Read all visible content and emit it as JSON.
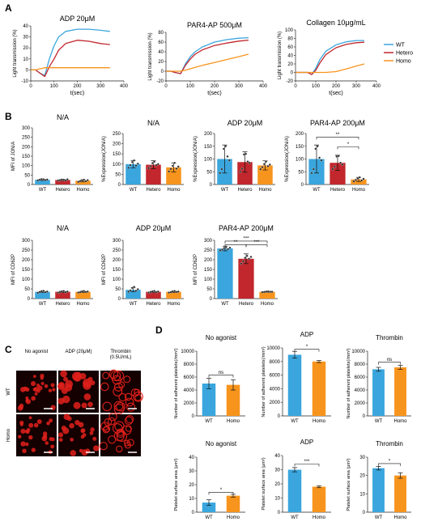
{
  "colors": {
    "wt": "#3aa6dd",
    "hetero": "#c1272d",
    "homo": "#f7941d",
    "axis": "#222222",
    "microscopy_bg": "#140000",
    "cell": "#e0201b",
    "scale_bar": "#ffffff"
  },
  "panels": {
    "A": {
      "label": "A",
      "legend": [
        "WT",
        "Hetero",
        "Homo"
      ],
      "charts": [
        {
          "type": "line",
          "title": "ADP 20μM",
          "xlabel": "t(sec)",
          "ylabel": "Light transmission (%)",
          "xlim": [
            0,
            400
          ],
          "ylim": [
            -10,
            40
          ],
          "xticks": [
            0,
            100,
            200,
            300,
            400
          ],
          "yticks": [
            -10,
            0,
            10,
            20,
            30,
            40
          ],
          "x": [
            0,
            20,
            40,
            60,
            80,
            100,
            120,
            150,
            200,
            250,
            300,
            340
          ],
          "series": [
            {
              "name": "WT",
              "values": [
                0,
                0,
                -3,
                -5,
                10,
                22,
                30,
                35,
                37,
                37,
                36,
                35
              ]
            },
            {
              "name": "Hetero",
              "values": [
                0,
                0,
                -3,
                -6,
                3,
                10,
                18,
                24,
                27,
                26,
                24,
                23
              ]
            },
            {
              "name": "Homo",
              "values": [
                0,
                0,
                1,
                2,
                2,
                2,
                2,
                2,
                2,
                2,
                2,
                2
              ]
            }
          ]
        },
        {
          "type": "line",
          "title": "PAR4-AP 500μM",
          "xlabel": "t(sec)",
          "ylabel": "Light transmission (%)",
          "xlim": [
            0,
            400
          ],
          "ylim": [
            -20,
            80
          ],
          "xticks": [
            0,
            100,
            200,
            300,
            400
          ],
          "yticks": [
            -20,
            0,
            20,
            40,
            60,
            80
          ],
          "x": [
            0,
            20,
            40,
            60,
            80,
            100,
            120,
            150,
            200,
            250,
            300,
            340
          ],
          "series": [
            {
              "name": "WT",
              "values": [
                0,
                0,
                -3,
                -5,
                15,
                30,
                40,
                50,
                60,
                65,
                68,
                69
              ]
            },
            {
              "name": "Hetero",
              "values": [
                0,
                0,
                -3,
                -5,
                12,
                25,
                35,
                44,
                53,
                58,
                62,
                64
              ]
            },
            {
              "name": "Homo",
              "values": [
                0,
                0,
                0,
                0,
                2,
                5,
                8,
                12,
                18,
                24,
                30,
                35
              ]
            }
          ]
        },
        {
          "type": "line",
          "title": "Collagen 10μg/mL",
          "xlabel": "t(sec)",
          "ylabel": "Light transmission (%)",
          "xlim": [
            0,
            400
          ],
          "ylim": [
            -20,
            100
          ],
          "xticks": [
            0,
            100,
            200,
            300,
            400
          ],
          "yticks": [
            -20,
            0,
            20,
            40,
            60,
            80,
            100
          ],
          "x": [
            0,
            60,
            80,
            100,
            120,
            150,
            200,
            250,
            300,
            340
          ],
          "series": [
            {
              "name": "WT",
              "values": [
                0,
                0,
                -5,
                10,
                30,
                50,
                65,
                72,
                75,
                75
              ]
            },
            {
              "name": "Hetero",
              "values": [
                0,
                0,
                -5,
                5,
                22,
                42,
                58,
                66,
                70,
                71
              ]
            },
            {
              "name": "Homo",
              "values": [
                0,
                0,
                0,
                0,
                0,
                0,
                2,
                8,
                15,
                20
              ]
            }
          ]
        }
      ]
    },
    "B": {
      "label": "B",
      "charts": [
        {
          "type": "bar",
          "title": "N/A",
          "ylabel": "MFI of JON/A",
          "categories": [
            "WT",
            "Hetero",
            "Homo"
          ],
          "values": [
            25,
            24,
            20
          ],
          "errors": [
            4,
            4,
            6
          ],
          "ylim": [
            0,
            300
          ],
          "yticks": [
            0,
            50,
            100,
            150,
            200,
            250,
            300
          ],
          "points": [
            [
              22,
              25,
              28,
              27,
              23,
              26
            ],
            [
              21,
              23,
              26,
              25,
              22,
              27
            ],
            [
              14,
              18,
              22,
              25,
              17,
              23
            ]
          ],
          "sig": []
        },
        {
          "type": "bar",
          "title": "N/A",
          "ylabel": "%Expression(JON/A)",
          "categories": [
            "WT",
            "Hetero",
            "Homo"
          ],
          "values": [
            100,
            97,
            84
          ],
          "errors": [
            18,
            20,
            22
          ],
          "ylim": [
            0,
            250
          ],
          "yticks": [
            0,
            50,
            100,
            150,
            200,
            250
          ],
          "points": [
            [
              82,
              95,
              110,
              118,
              92,
              102
            ],
            [
              80,
              90,
              105,
              112,
              95,
              100
            ],
            [
              64,
              76,
              92,
              106,
              78,
              88
            ]
          ],
          "sig": []
        },
        {
          "type": "bar",
          "title": "ADP 20μM",
          "ylabel": "%Expression(JON/A)",
          "categories": [
            "WT",
            "Hetero",
            "Homo"
          ],
          "values": [
            100,
            88,
            75
          ],
          "errors": [
            55,
            40,
            18
          ],
          "ylim": [
            0,
            200
          ],
          "yticks": [
            0,
            50,
            100,
            150,
            200
          ],
          "points": [
            [
              45,
              60,
              140,
              150,
              110,
              95
            ],
            [
              50,
              62,
              118,
              120,
              90,
              85
            ],
            [
              60,
              68,
              80,
              90,
              72,
              78
            ]
          ],
          "sig": []
        },
        {
          "type": "bar",
          "title": "PAR4-AP 200μM",
          "ylabel": "%Expression(JON/A)",
          "categories": [
            "WT",
            "Hetero",
            "Homo"
          ],
          "values": [
            100,
            85,
            20
          ],
          "errors": [
            55,
            30,
            8
          ],
          "ylim": [
            0,
            200
          ],
          "yticks": [
            0,
            50,
            100,
            150,
            200
          ],
          "points": [
            [
              45,
              60,
              140,
              150,
              105,
              95
            ],
            [
              60,
              70,
              110,
              112,
              85,
              78
            ],
            [
              12,
              18,
              24,
              28,
              16,
              22
            ]
          ],
          "sig": [
            {
              "from": 0,
              "to": 2,
              "label": "**",
              "y": 186
            },
            {
              "from": 1,
              "to": 2,
              "label": "*",
              "y": 148
            }
          ]
        },
        {
          "type": "bar",
          "title": "N/A",
          "ylabel": "MFI of CD62P",
          "categories": [
            "WT",
            "Hetero",
            "Homo"
          ],
          "values": [
            35,
            35,
            35
          ],
          "errors": [
            4,
            4,
            4
          ],
          "ylim": [
            0,
            300
          ],
          "yticks": [
            0,
            50,
            100,
            150,
            200,
            250,
            300
          ],
          "points": [
            [
              30,
              34,
              38,
              40,
              33,
              36
            ],
            [
              31,
              34,
              37,
              39,
              33,
              36
            ],
            [
              31,
              33,
              37,
              39,
              34,
              36
            ]
          ],
          "sig": []
        },
        {
          "type": "bar",
          "title": "ADP 20μM",
          "ylabel": "MFI of CD62P",
          "categories": [
            "WT",
            "Hetero",
            "Homo"
          ],
          "values": [
            45,
            35,
            35
          ],
          "errors": [
            10,
            4,
            4
          ],
          "ylim": [
            0,
            300
          ],
          "yticks": [
            0,
            50,
            100,
            150,
            200,
            250,
            300
          ],
          "points": [
            [
              35,
              42,
              55,
              60,
              40,
              48
            ],
            [
              31,
              34,
              37,
              39,
              33,
              36
            ],
            [
              31,
              33,
              37,
              39,
              34,
              36
            ]
          ],
          "sig": []
        },
        {
          "type": "bar",
          "title": "PAR4-AP 200μM",
          "ylabel": "MFI of CD62P",
          "categories": [
            "WT",
            "Hetero",
            "Homo"
          ],
          "values": [
            258,
            205,
            35
          ],
          "errors": [
            12,
            25,
            3
          ],
          "ylim": [
            0,
            300
          ],
          "yticks": [
            0,
            50,
            100,
            150,
            200,
            250,
            300
          ],
          "points": [
            [
              248,
              252,
              260,
              265,
              255,
              262
            ],
            [
              180,
              192,
              210,
              220,
              205,
              215
            ],
            [
              33,
              34,
              36,
              37,
              35,
              35
            ]
          ],
          "sig": [
            {
              "from": 0,
              "to": 2,
              "label": "***",
              "y": 296
            },
            {
              "from": 0,
              "to": 1,
              "label": "**",
              "y": 278
            },
            {
              "from": 1,
              "to": 2,
              "label": "***",
              "y": 278
            }
          ]
        }
      ]
    },
    "C": {
      "label": "C",
      "columns": [
        "No agonist",
        "ADP (20μM)",
        "Thrombin\n(0.5U/mL)"
      ],
      "rows": [
        "WT",
        "Homo"
      ]
    },
    "D": {
      "label": "D",
      "charts": [
        {
          "type": "bar",
          "title": "No agonist",
          "ylabel": "Number of adherent platelets(/mm²)",
          "categories": [
            "WT",
            "Homo"
          ],
          "values": [
            5000,
            4800
          ],
          "errors": [
            800,
            800
          ],
          "ylim": [
            0,
            10000
          ],
          "yticks": [
            0,
            2000,
            4000,
            6000,
            8000,
            10000
          ],
          "sig": [
            {
              "from": 0,
              "to": 1,
              "label": "ns",
              "y": 6300
            }
          ]
        },
        {
          "type": "bar",
          "title": "ADP",
          "ylabel": "Number of adherent platelets(/mm²)",
          "categories": [
            "WT",
            "Homo"
          ],
          "values": [
            9000,
            8000
          ],
          "errors": [
            500,
            150
          ],
          "ylim": [
            0,
            10000
          ],
          "yticks": [
            0,
            2000,
            4000,
            6000,
            8000,
            10000
          ],
          "sig": [
            {
              "from": 0,
              "to": 1,
              "label": "*",
              "y": 9800
            }
          ]
        },
        {
          "type": "bar",
          "title": "Thrombin",
          "ylabel": "Number of adherent platelets(/mm²)",
          "categories": [
            "WT",
            "Homo"
          ],
          "values": [
            7200,
            7500
          ],
          "errors": [
            300,
            300
          ],
          "ylim": [
            0,
            10000
          ],
          "yticks": [
            0,
            2000,
            4000,
            6000,
            8000,
            10000
          ],
          "sig": [
            {
              "from": 0,
              "to": 1,
              "label": "ns",
              "y": 8300
            }
          ]
        },
        {
          "type": "bar",
          "title": "No agonist",
          "ylabel": "Platelet surface area (μm²)",
          "categories": [
            "WT",
            "Homo"
          ],
          "values": [
            7,
            12
          ],
          "errors": [
            2,
            1
          ],
          "ylim": [
            0,
            40
          ],
          "yticks": [
            0,
            10,
            20,
            30,
            40
          ],
          "sig": [
            {
              "from": 0,
              "to": 1,
              "label": "*",
              "y": 14.5
            }
          ]
        },
        {
          "type": "bar",
          "title": "ADP",
          "ylabel": "Platelet surface area (μm²)",
          "categories": [
            "WT",
            "Homo"
          ],
          "values": [
            30,
            18
          ],
          "errors": [
            1.5,
            0.7
          ],
          "ylim": [
            0,
            40
          ],
          "yticks": [
            0,
            10,
            20,
            30,
            40
          ],
          "sig": [
            {
              "from": 0,
              "to": 1,
              "label": "***",
              "y": 34
            }
          ]
        },
        {
          "type": "bar",
          "title": "Thrombin",
          "ylabel": "Platelet surface area (μm²)",
          "categories": [
            "WT",
            "Homo"
          ],
          "values": [
            24,
            20
          ],
          "errors": [
            1,
            1.5
          ],
          "ylim": [
            0,
            30
          ],
          "yticks": [
            0,
            10,
            20,
            30
          ],
          "sig": [
            {
              "from": 0,
              "to": 1,
              "label": "*",
              "y": 26.5
            }
          ]
        }
      ]
    }
  }
}
